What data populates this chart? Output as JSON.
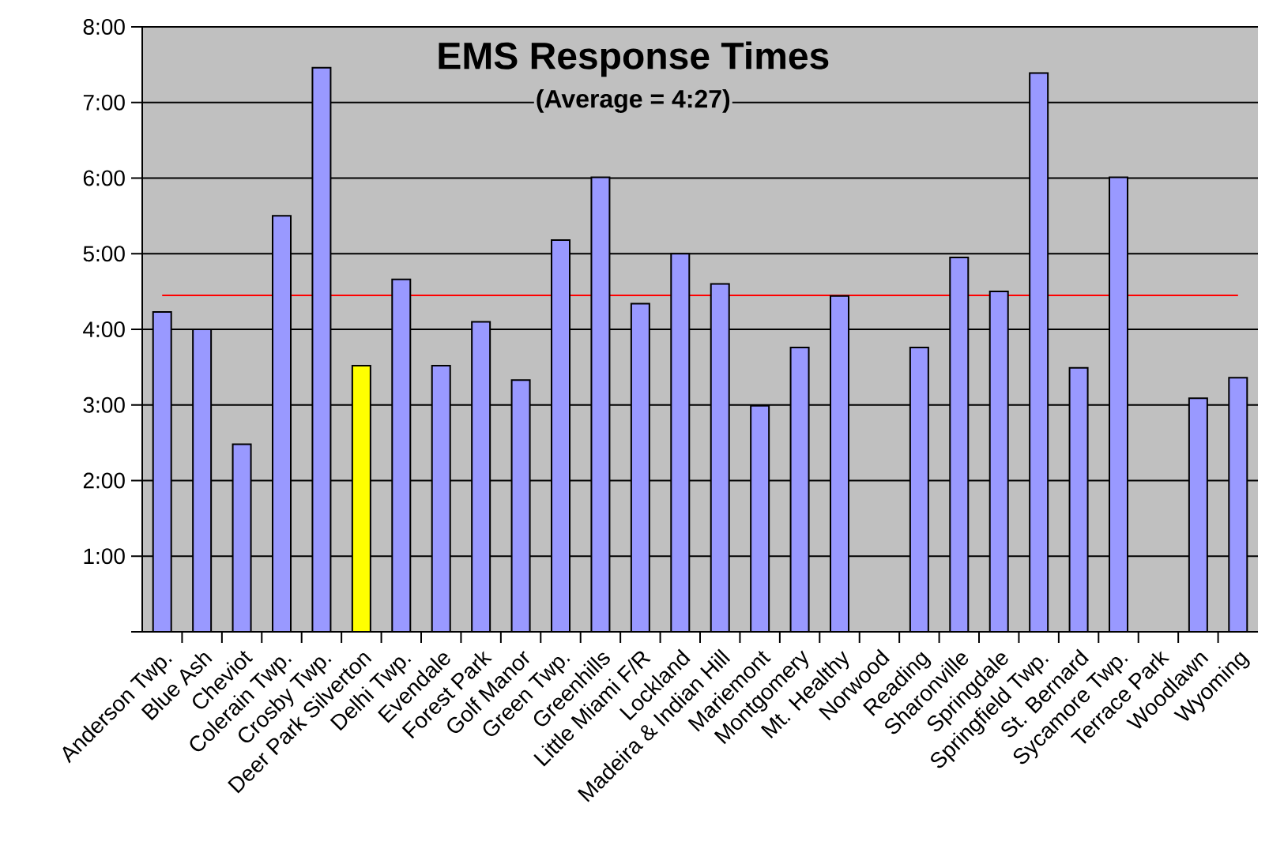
{
  "chart_data": {
    "type": "bar",
    "title": "EMS Response Times",
    "subtitle": "(Average = 4:27)",
    "categories": [
      "Anderson Twp.",
      "Blue Ash",
      "Cheviot",
      "Colerain Twp.",
      "Crosby Twp.",
      "Deer Park Silverton",
      "Delhi Twp.",
      "Evendale",
      "Forest Park",
      "Golf Manor",
      "Green Twp.",
      "Greenhills",
      "Little Miami F/R",
      "Lockland",
      "Madeira & Indian Hill",
      "Mariemont",
      "Montgomery",
      "Mt. Healthy",
      "Norwood",
      "Reading",
      "Sharonville",
      "Springdale",
      "Springfield Twp.",
      "St. Bernard",
      "Sycamore Twp.",
      "Terrace Park",
      "Woodlawn",
      "Wyoming"
    ],
    "values": [
      4.23,
      4.0,
      2.48,
      5.5,
      7.46,
      3.52,
      4.66,
      3.52,
      4.1,
      3.33,
      5.18,
      6.01,
      4.34,
      5.0,
      4.6,
      2.99,
      3.76,
      4.44,
      null,
      3.76,
      4.95,
      4.5,
      7.39,
      3.49,
      6.01,
      null,
      3.09,
      3.36
    ],
    "colors": [
      "#9999ff",
      "#9999ff",
      "#9999ff",
      "#9999ff",
      "#9999ff",
      "#ffff00",
      "#9999ff",
      "#9999ff",
      "#9999ff",
      "#9999ff",
      "#9999ff",
      "#9999ff",
      "#9999ff",
      "#9999ff",
      "#9999ff",
      "#9999ff",
      "#9999ff",
      "#9999ff",
      "#9999ff",
      "#9999ff",
      "#9999ff",
      "#9999ff",
      "#9999ff",
      "#9999ff",
      "#9999ff",
      "#9999ff",
      "#9999ff",
      "#9999ff"
    ],
    "ylim": [
      0,
      8
    ],
    "yticks": [
      {
        "value": 0,
        "label": null
      },
      {
        "value": 1,
        "label": "1:00"
      },
      {
        "value": 2,
        "label": "2:00"
      },
      {
        "value": 3,
        "label": "3:00"
      },
      {
        "value": 4,
        "label": "4:00"
      },
      {
        "value": 5,
        "label": "5:00"
      },
      {
        "value": 6,
        "label": "6:00"
      },
      {
        "value": 7,
        "label": "7:00"
      },
      {
        "value": 8,
        "label": "8:00"
      }
    ],
    "grid": "y",
    "ref_lines": [
      {
        "axis": "y",
        "value": 4.45,
        "color": "#ff0000"
      }
    ]
  }
}
